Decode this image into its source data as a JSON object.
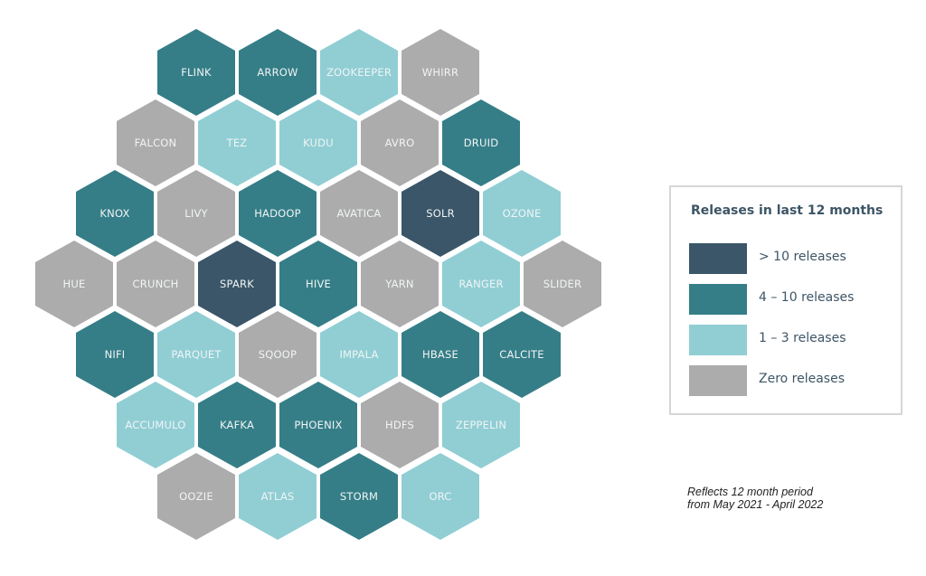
{
  "chart_data": {
    "type": "hex-tile-map",
    "title": "Releases in last 12 months",
    "legend": [
      {
        "category": "high",
        "label": "> 10 releases",
        "color": "#3a5668"
      },
      {
        "category": "mid",
        "label": "4 – 10 releases",
        "color": "#357e87"
      },
      {
        "category": "low",
        "label": "1 – 3 releases",
        "color": "#90ced4"
      },
      {
        "category": "zero",
        "label": "Zero releases",
        "color": "#acacac"
      }
    ],
    "rows": [
      [
        {
          "name": "FLINK",
          "category": "mid"
        },
        {
          "name": "ARROW",
          "category": "mid"
        },
        {
          "name": "ZOOKEEPER",
          "category": "low"
        },
        {
          "name": "WHIRR",
          "category": "zero"
        }
      ],
      [
        {
          "name": "FALCON",
          "category": "zero"
        },
        {
          "name": "TEZ",
          "category": "low"
        },
        {
          "name": "KUDU",
          "category": "low"
        },
        {
          "name": "AVRO",
          "category": "zero"
        },
        {
          "name": "DRUID",
          "category": "mid"
        }
      ],
      [
        {
          "name": "KNOX",
          "category": "mid"
        },
        {
          "name": "LIVY",
          "category": "zero"
        },
        {
          "name": "HADOOP",
          "category": "mid"
        },
        {
          "name": "AVATICA",
          "category": "zero"
        },
        {
          "name": "SOLR",
          "category": "high"
        },
        {
          "name": "OZONE",
          "category": "low"
        }
      ],
      [
        {
          "name": "HUE",
          "category": "zero"
        },
        {
          "name": "CRUNCH",
          "category": "zero"
        },
        {
          "name": "SPARK",
          "category": "high"
        },
        {
          "name": "HIVE",
          "category": "mid"
        },
        {
          "name": "YARN",
          "category": "zero"
        },
        {
          "name": "RANGER",
          "category": "low"
        },
        {
          "name": "SLIDER",
          "category": "zero"
        }
      ],
      [
        {
          "name": "NIFI",
          "category": "mid"
        },
        {
          "name": "PARQUET",
          "category": "low"
        },
        {
          "name": "SQOOP",
          "category": "zero"
        },
        {
          "name": "IMPALA",
          "category": "low"
        },
        {
          "name": "HBASE",
          "category": "mid"
        },
        {
          "name": "CALCITE",
          "category": "mid"
        }
      ],
      [
        {
          "name": "ACCUMULO",
          "category": "low"
        },
        {
          "name": "KAFKA",
          "category": "mid"
        },
        {
          "name": "PHOENIX",
          "category": "mid"
        },
        {
          "name": "HDFS",
          "category": "zero"
        },
        {
          "name": "ZEPPELIN",
          "category": "low"
        }
      ],
      [
        {
          "name": "OOZIE",
          "category": "zero"
        },
        {
          "name": "ATLAS",
          "category": "low"
        },
        {
          "name": "STORM",
          "category": "mid"
        },
        {
          "name": "ORC",
          "category": "low"
        }
      ]
    ],
    "note": [
      "Reflects 12 month period",
      "from May 2021 - April 2022"
    ]
  }
}
